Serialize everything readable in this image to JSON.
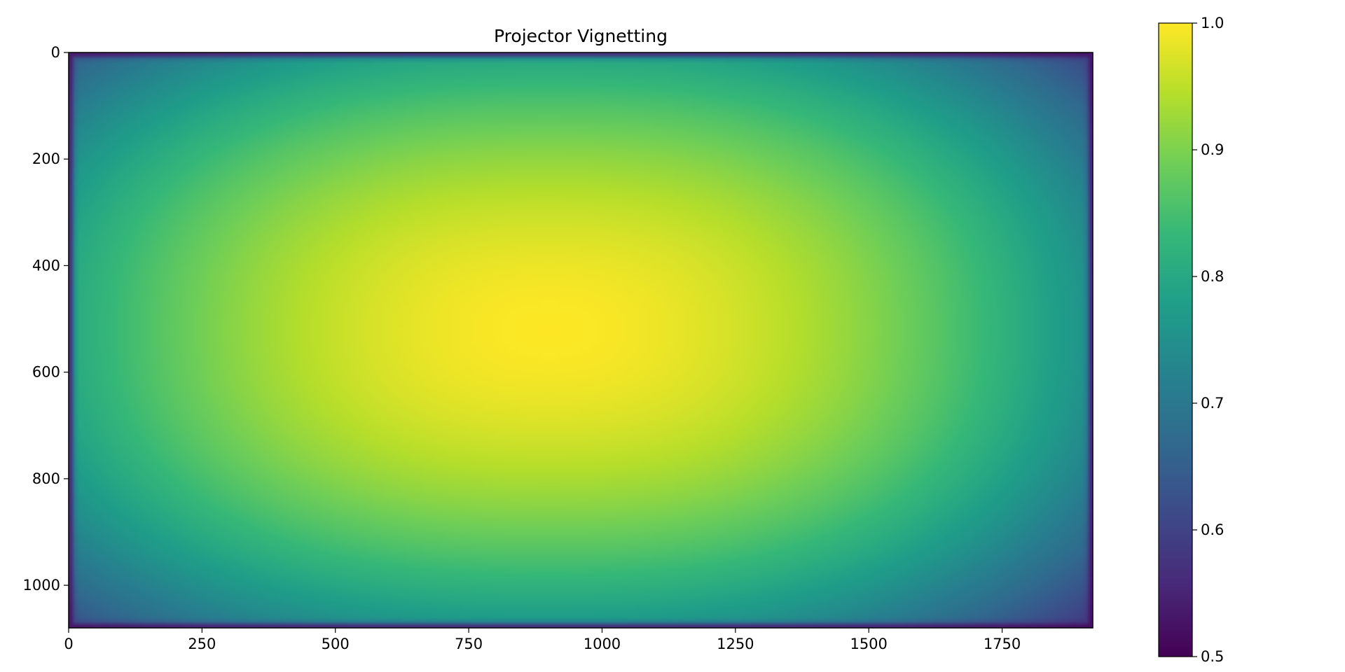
{
  "chart_data": {
    "type": "heatmap",
    "title": "Projector Vignetting",
    "colormap": "viridis",
    "colormap_stops": [
      "#440154",
      "#482878",
      "#3e4989",
      "#31688e",
      "#26828e",
      "#1f9e89",
      "#35b779",
      "#6ece58",
      "#b5de2b",
      "#fde725"
    ],
    "x_range": [
      0,
      1920
    ],
    "y_range": [
      0,
      1080
    ],
    "y_inverted": true,
    "x_ticks": [
      0,
      250,
      500,
      750,
      1000,
      1250,
      1500,
      1750
    ],
    "x_tick_labels": [
      "0",
      "250",
      "500",
      "750",
      "1000",
      "1250",
      "1500",
      "1750"
    ],
    "y_ticks": [
      0,
      200,
      400,
      600,
      800,
      1000
    ],
    "y_tick_labels": [
      "0",
      "200",
      "400",
      "600",
      "800",
      "1000"
    ],
    "value_range": [
      0.5,
      1.0
    ],
    "colorbar_ticks": [
      0.5,
      0.6,
      0.7,
      0.8,
      0.9,
      1.0
    ],
    "colorbar_tick_labels": [
      "0.5",
      "0.6",
      "0.7",
      "0.8",
      "0.9",
      "1.0"
    ],
    "field": {
      "peak_value": 1.0,
      "peak_center": [
        900,
        520
      ],
      "center_plateau_value": 0.97,
      "edge_mid_value": 0.75,
      "corner_value": 0.62,
      "border_value": 0.5
    }
  }
}
